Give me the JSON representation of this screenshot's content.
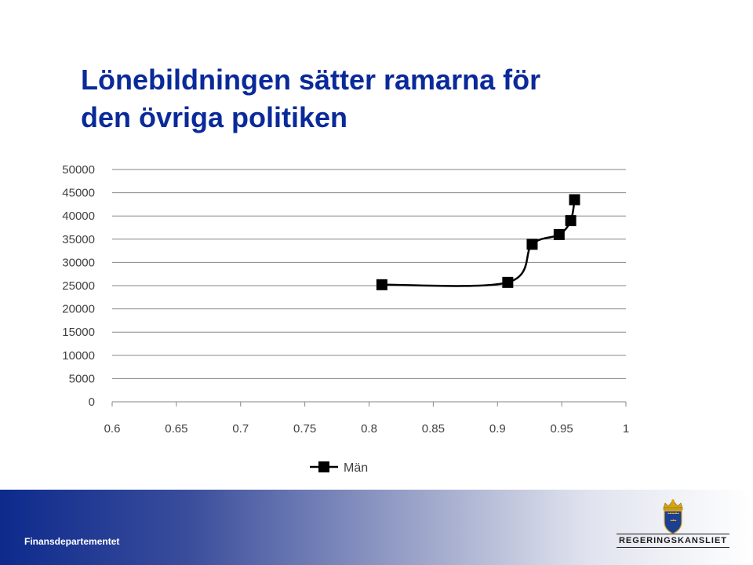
{
  "slide": {
    "title_line1": "Lönebildningen sätter ramarna för",
    "title_line2": "den övriga politiken"
  },
  "footer": {
    "department": "Finansdepartementet",
    "logo_text": "REGERINGSKANSLIET"
  },
  "colors": {
    "title": "#0a2a9a",
    "series": "#000000",
    "grid": "#868686"
  },
  "chart_data": {
    "type": "scatter",
    "smooth_line": true,
    "marker": "square",
    "grid": true,
    "legend_position": "bottom",
    "xlim": [
      0.6,
      1
    ],
    "ylim": [
      0,
      50000
    ],
    "x_ticks": [
      "0.6",
      "0.65",
      "0.7",
      "0.75",
      "0.8",
      "0.85",
      "0.9",
      "0.95",
      "1"
    ],
    "y_ticks": [
      "0",
      "5000",
      "10000",
      "15000",
      "20000",
      "25000",
      "30000",
      "35000",
      "40000",
      "45000",
      "50000"
    ],
    "series": [
      {
        "name": "Män",
        "points": [
          {
            "x": 0.81,
            "y": 25200
          },
          {
            "x": 0.908,
            "y": 25700
          },
          {
            "x": 0.927,
            "y": 33900
          },
          {
            "x": 0.948,
            "y": 36000
          },
          {
            "x": 0.957,
            "y": 39000
          },
          {
            "x": 0.96,
            "y": 43500
          }
        ]
      }
    ]
  }
}
